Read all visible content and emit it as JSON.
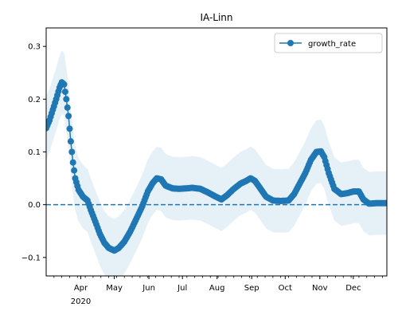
{
  "chart_data": {
    "type": "line",
    "title": "IA-Linn",
    "xlabel": "",
    "ylabel": "",
    "x_range": [
      "2020-03-01",
      "2020-12-31"
    ],
    "ylim": [
      -0.135,
      0.335
    ],
    "yticks": [
      -0.1,
      0.0,
      0.1,
      0.2,
      0.3
    ],
    "ytick_labels": [
      "−0.1",
      "0.0",
      "0.1",
      "0.2",
      "0.3"
    ],
    "xticks": [
      {
        "date": "2020-04-01",
        "label": "Apr",
        "sublabel": "2020"
      },
      {
        "date": "2020-05-01",
        "label": "May"
      },
      {
        "date": "2020-06-01",
        "label": "Jun"
      },
      {
        "date": "2020-07-01",
        "label": "Jul"
      },
      {
        "date": "2020-08-01",
        "label": "Aug"
      },
      {
        "date": "2020-09-01",
        "label": "Sep"
      },
      {
        "date": "2020-10-01",
        "label": "Oct"
      },
      {
        "date": "2020-11-01",
        "label": "Nov"
      },
      {
        "date": "2020-12-01",
        "label": "Dec"
      }
    ],
    "grid": false,
    "legend_position": "top-right",
    "reference_line": {
      "y": 0,
      "style": "dashed"
    },
    "series": [
      {
        "name": "growth_rate",
        "color": "#1f77b4",
        "band_color": "#1f77b4",
        "band_width": 0.06,
        "points": [
          [
            "2020-03-01",
            0.145
          ],
          [
            "2020-03-04",
            0.16
          ],
          [
            "2020-03-07",
            0.18
          ],
          [
            "2020-03-10",
            0.2
          ],
          [
            "2020-03-13",
            0.222
          ],
          [
            "2020-03-15",
            0.232
          ],
          [
            "2020-03-17",
            0.228
          ],
          [
            "2020-03-19",
            0.2
          ],
          [
            "2020-03-21",
            0.168
          ],
          [
            "2020-03-23",
            0.12
          ],
          [
            "2020-03-25",
            0.08
          ],
          [
            "2020-03-27",
            0.05
          ],
          [
            "2020-03-30",
            0.028
          ],
          [
            "2020-04-03",
            0.015
          ],
          [
            "2020-04-07",
            0.008
          ],
          [
            "2020-04-10",
            -0.01
          ],
          [
            "2020-04-14",
            -0.032
          ],
          [
            "2020-04-18",
            -0.055
          ],
          [
            "2020-04-22",
            -0.072
          ],
          [
            "2020-04-26",
            -0.082
          ],
          [
            "2020-05-01",
            -0.087
          ],
          [
            "2020-05-05",
            -0.082
          ],
          [
            "2020-05-10",
            -0.07
          ],
          [
            "2020-05-15",
            -0.052
          ],
          [
            "2020-05-20",
            -0.03
          ],
          [
            "2020-05-26",
            -0.003
          ],
          [
            "2020-05-31",
            0.025
          ],
          [
            "2020-06-04",
            0.04
          ],
          [
            "2020-06-08",
            0.05
          ],
          [
            "2020-06-12",
            0.048
          ],
          [
            "2020-06-16",
            0.036
          ],
          [
            "2020-06-22",
            0.031
          ],
          [
            "2020-06-28",
            0.03
          ],
          [
            "2020-07-05",
            0.031
          ],
          [
            "2020-07-10",
            0.032
          ],
          [
            "2020-07-17",
            0.03
          ],
          [
            "2020-07-24",
            0.023
          ],
          [
            "2020-07-31",
            0.015
          ],
          [
            "2020-08-05",
            0.01
          ],
          [
            "2020-08-10",
            0.018
          ],
          [
            "2020-08-16",
            0.03
          ],
          [
            "2020-08-22",
            0.04
          ],
          [
            "2020-08-27",
            0.045
          ],
          [
            "2020-08-31",
            0.05
          ],
          [
            "2020-09-04",
            0.045
          ],
          [
            "2020-09-09",
            0.03
          ],
          [
            "2020-09-14",
            0.015
          ],
          [
            "2020-09-20",
            0.008
          ],
          [
            "2020-09-27",
            0.007
          ],
          [
            "2020-10-04",
            0.008
          ],
          [
            "2020-10-09",
            0.02
          ],
          [
            "2020-10-14",
            0.04
          ],
          [
            "2020-10-19",
            0.06
          ],
          [
            "2020-10-24",
            0.085
          ],
          [
            "2020-10-29",
            0.1
          ],
          [
            "2020-11-02",
            0.101
          ],
          [
            "2020-11-05",
            0.09
          ],
          [
            "2020-11-09",
            0.06
          ],
          [
            "2020-11-14",
            0.03
          ],
          [
            "2020-11-20",
            0.02
          ],
          [
            "2020-11-26",
            0.022
          ],
          [
            "2020-12-01",
            0.025
          ],
          [
            "2020-12-06",
            0.025
          ],
          [
            "2020-12-10",
            0.01
          ],
          [
            "2020-12-15",
            0.002
          ],
          [
            "2020-12-22",
            0.003
          ],
          [
            "2020-12-31",
            0.003
          ]
        ]
      }
    ]
  }
}
